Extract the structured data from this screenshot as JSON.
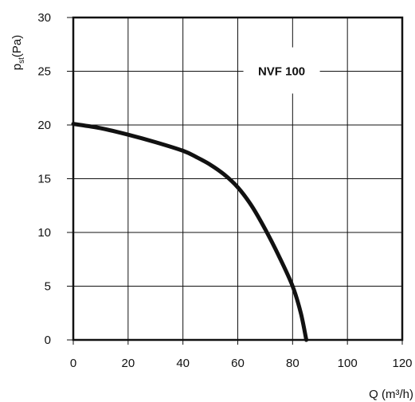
{
  "chart_data": {
    "type": "line",
    "title": "",
    "xlabel": "Q (m³/h)",
    "ylabel": "pst(Pa)",
    "ylabel_main": "p",
    "ylabel_sub": "st",
    "ylabel_unit": "(Pa)",
    "xlim": [
      0,
      120
    ],
    "ylim": [
      0,
      30
    ],
    "xticks": [
      0,
      20,
      40,
      60,
      80,
      100,
      120
    ],
    "yticks": [
      0,
      5,
      10,
      15,
      20,
      25,
      30
    ],
    "grid": true,
    "annotations": [
      {
        "text": "NVF 100",
        "x": 76,
        "y": 25
      }
    ],
    "series": [
      {
        "name": "",
        "color": "#111111",
        "x": [
          0,
          10,
          20,
          30,
          40,
          45,
          50,
          55,
          60,
          65,
          70,
          75,
          80,
          83,
          85
        ],
        "y": [
          20.1,
          19.7,
          19.1,
          18.4,
          17.6,
          17.0,
          16.3,
          15.4,
          14.2,
          12.5,
          10.3,
          7.8,
          5.0,
          2.5,
          0
        ]
      }
    ]
  }
}
